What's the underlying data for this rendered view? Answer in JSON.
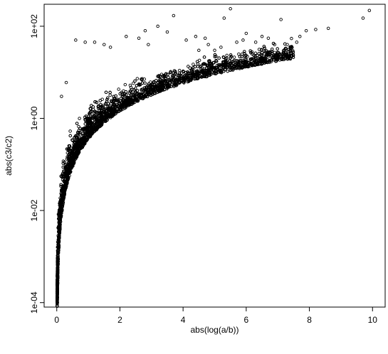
{
  "chart_data": {
    "type": "scatter",
    "title": "",
    "xlabel": "abs(log(a/b))",
    "ylabel": "abs(c3/c2)",
    "x_ticks": [
      "0",
      "2",
      "4",
      "6",
      "8",
      "10"
    ],
    "x_tick_values": [
      0,
      2,
      4,
      6,
      8,
      10
    ],
    "y_ticks": [
      "1e-04",
      "1e-02",
      "1e+00",
      "1e+02"
    ],
    "y_tick_values": [
      0.0001,
      0.01,
      1,
      100
    ],
    "xlim": [
      -0.4,
      10.4
    ],
    "ylim": [
      8e-05,
      300
    ],
    "y_scale": "log",
    "grid": false,
    "legend": "none",
    "marker": "open-circle",
    "marker_color": "#000000",
    "outlier_points": [
      {
        "x": 9.9,
        "y": 220
      },
      {
        "x": 9.7,
        "y": 150
      },
      {
        "x": 8.6,
        "y": 90
      },
      {
        "x": 8.2,
        "y": 85
      },
      {
        "x": 7.9,
        "y": 80
      },
      {
        "x": 7.7,
        "y": 60
      },
      {
        "x": 7.6,
        "y": 45
      },
      {
        "x": 7.3,
        "y": 40
      },
      {
        "x": 7.1,
        "y": 140
      },
      {
        "x": 6.9,
        "y": 40
      },
      {
        "x": 6.7,
        "y": 55
      },
      {
        "x": 6.5,
        "y": 60
      },
      {
        "x": 6.3,
        "y": 45
      },
      {
        "x": 6.0,
        "y": 70
      },
      {
        "x": 5.9,
        "y": 50
      },
      {
        "x": 5.7,
        "y": 45
      },
      {
        "x": 5.5,
        "y": 240
      },
      {
        "x": 5.3,
        "y": 150
      },
      {
        "x": 5.2,
        "y": 35
      },
      {
        "x": 5.0,
        "y": 30
      },
      {
        "x": 4.8,
        "y": 40
      },
      {
        "x": 4.7,
        "y": 55
      },
      {
        "x": 4.5,
        "y": 30
      },
      {
        "x": 4.4,
        "y": 60
      },
      {
        "x": 4.1,
        "y": 50
      },
      {
        "x": 3.7,
        "y": 170
      },
      {
        "x": 3.5,
        "y": 75
      },
      {
        "x": 3.2,
        "y": 100
      },
      {
        "x": 2.9,
        "y": 40
      },
      {
        "x": 2.8,
        "y": 80
      },
      {
        "x": 2.6,
        "y": 55
      },
      {
        "x": 2.2,
        "y": 60
      },
      {
        "x": 1.7,
        "y": 35
      },
      {
        "x": 1.5,
        "y": 40
      },
      {
        "x": 1.2,
        "y": 45
      },
      {
        "x": 0.9,
        "y": 45
      },
      {
        "x": 0.6,
        "y": 50
      },
      {
        "x": 0.3,
        "y": 6
      },
      {
        "x": 0.15,
        "y": 3
      },
      {
        "x": 0.02,
        "y": 0.0001
      },
      {
        "x": 0.02,
        "y": 0.00013
      },
      {
        "x": 0.02,
        "y": 0.00018
      },
      {
        "x": 0.03,
        "y": 0.0003
      },
      {
        "x": 0.03,
        "y": 0.0005
      },
      {
        "x": 0.04,
        "y": 0.0008
      }
    ],
    "main_cloud": {
      "description_of_trend": "dense band following y ≈ 0.4·x^2 with scatter, from x≈0 to x≈9",
      "point_count": 4000,
      "coef": 0.4,
      "exponent": 2
    }
  }
}
